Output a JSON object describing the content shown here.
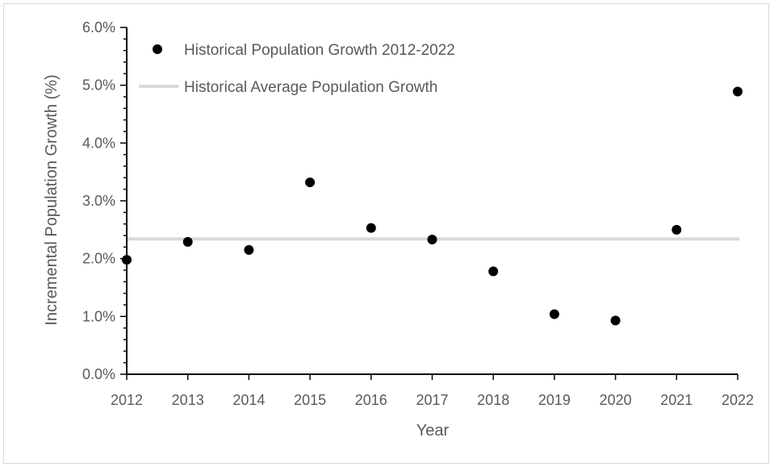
{
  "chart_data": {
    "type": "scatter",
    "title": "",
    "xlabel": "Year",
    "ylabel": "Incremental Population Growth (%)",
    "x_ticks": [
      "2012",
      "2013",
      "2014",
      "2015",
      "2016",
      "2017",
      "2018",
      "2019",
      "2020",
      "2021",
      "2022"
    ],
    "y_ticks": [
      "0.0%",
      "1.0%",
      "2.0%",
      "3.0%",
      "4.0%",
      "5.0%",
      "6.0%"
    ],
    "xlim": [
      2012,
      2022
    ],
    "ylim": [
      0,
      6
    ],
    "grid": false,
    "legend_position": "top-left",
    "series": [
      {
        "name": "Historical Population Growth 2012-2022",
        "kind": "scatter",
        "color": "#000000",
        "x": [
          2012,
          2013,
          2014,
          2015,
          2016,
          2017,
          2018,
          2019,
          2020,
          2021,
          2022
        ],
        "y": [
          1.98,
          2.29,
          2.15,
          3.32,
          2.53,
          2.33,
          1.78,
          1.04,
          0.93,
          2.5,
          4.89
        ]
      },
      {
        "name": "Historical Average Population Growth",
        "kind": "line",
        "color": "#d9d9d9",
        "x": [
          2012,
          2022
        ],
        "y": [
          2.34,
          2.34
        ]
      }
    ]
  }
}
